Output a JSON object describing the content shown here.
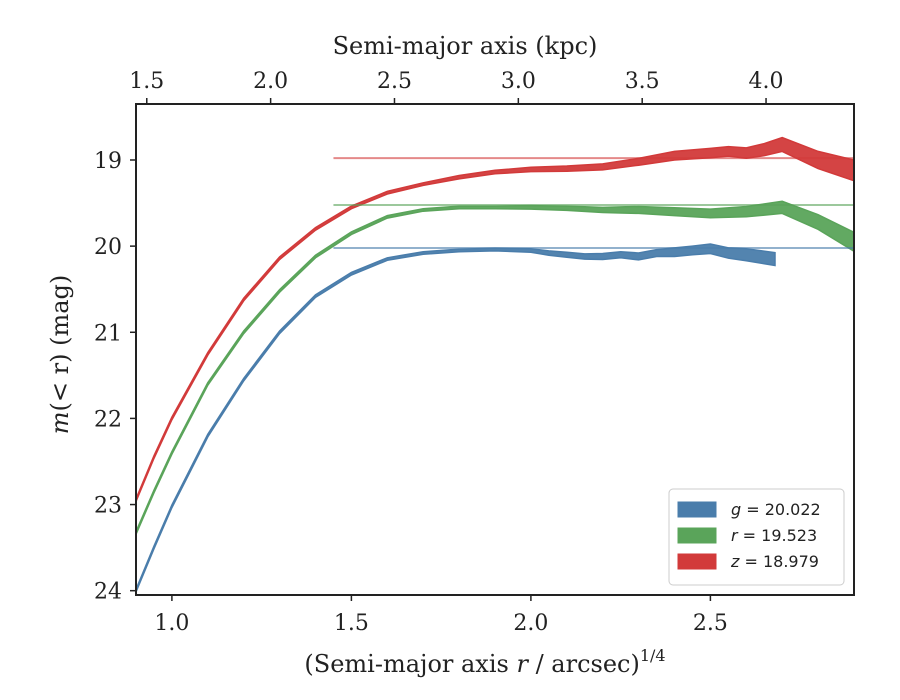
{
  "chart_data": {
    "type": "area",
    "xlabel": "(Semi-major axis r / arcsec)^(1/4)",
    "xlabel_parts": {
      "prefix": "(Semi-major axis ",
      "var": "r",
      "suffix": " / arcsec)",
      "sup": "1/4"
    },
    "ylabel": "m(< r) (mag)",
    "ylabel_parts": {
      "var": "m",
      "rest": "(< r) (mag)"
    },
    "top_xlabel": "Semi-major axis (kpc)",
    "xlim": [
      0.9,
      2.9
    ],
    "ylim": [
      24.05,
      18.35
    ],
    "y_inverted": true,
    "x_ticks": [
      1.0,
      1.5,
      2.0,
      2.5
    ],
    "x_tick_labels": [
      "1.0",
      "1.5",
      "2.0",
      "2.5"
    ],
    "y_ticks": [
      19,
      20,
      21,
      22,
      23,
      24
    ],
    "y_tick_labels": [
      "19",
      "20",
      "21",
      "22",
      "23",
      "24"
    ],
    "top_x_ticks": [
      1.5,
      2.0,
      2.5,
      3.0,
      3.5,
      4.0
    ],
    "top_x_tick_labels": [
      "1.5",
      "2.0",
      "2.5",
      "3.0",
      "3.5",
      "4.0"
    ],
    "top_x_tick_positions": [
      0.93,
      1.275,
      1.62,
      1.965,
      2.31,
      2.655
    ],
    "grid": false,
    "legend_position": "bottom-right",
    "series": [
      {
        "name": "g = 20.022",
        "band": "g",
        "value": "20.022",
        "color": "#4a7dab",
        "asymptote": 20.022,
        "x": [
          0.9,
          0.95,
          1.0,
          1.1,
          1.2,
          1.3,
          1.4,
          1.5,
          1.6,
          1.7,
          1.8,
          1.9,
          2.0,
          2.05,
          2.1,
          2.15,
          2.2,
          2.25,
          2.3,
          2.35,
          2.4,
          2.45,
          2.5,
          2.55,
          2.6,
          2.68
        ],
        "y": [
          24.0,
          23.5,
          23.02,
          22.2,
          21.55,
          21.0,
          20.58,
          20.32,
          20.15,
          20.08,
          20.05,
          20.04,
          20.05,
          20.08,
          20.1,
          20.12,
          20.12,
          20.1,
          20.12,
          20.08,
          20.07,
          20.05,
          20.03,
          20.08,
          20.1,
          20.15
        ],
        "width": [
          0.03,
          0.03,
          0.03,
          0.03,
          0.03,
          0.03,
          0.03,
          0.03,
          0.03,
          0.03,
          0.03,
          0.03,
          0.04,
          0.05,
          0.06,
          0.06,
          0.07,
          0.07,
          0.08,
          0.08,
          0.1,
          0.1,
          0.11,
          0.12,
          0.14,
          0.15
        ]
      },
      {
        "name": "r = 19.523",
        "band": "r",
        "value": "19.523",
        "color": "#5aa45a",
        "asymptote": 19.523,
        "x": [
          0.9,
          0.95,
          1.0,
          1.1,
          1.2,
          1.3,
          1.4,
          1.5,
          1.6,
          1.7,
          1.8,
          1.9,
          2.0,
          2.1,
          2.2,
          2.25,
          2.3,
          2.4,
          2.5,
          2.6,
          2.7,
          2.8,
          2.9
        ],
        "y": [
          23.33,
          22.85,
          22.4,
          21.6,
          21.0,
          20.52,
          20.12,
          19.85,
          19.66,
          19.58,
          19.55,
          19.55,
          19.55,
          19.56,
          19.58,
          19.58,
          19.58,
          19.6,
          19.62,
          19.6,
          19.55,
          19.72,
          19.95
        ],
        "width": [
          0.03,
          0.03,
          0.03,
          0.03,
          0.03,
          0.03,
          0.03,
          0.03,
          0.03,
          0.03,
          0.03,
          0.03,
          0.04,
          0.05,
          0.06,
          0.07,
          0.08,
          0.09,
          0.1,
          0.12,
          0.14,
          0.17,
          0.22
        ]
      },
      {
        "name": "z = 18.979",
        "band": "z",
        "value": "18.979",
        "color": "#d23a3a",
        "asymptote": 18.979,
        "x": [
          0.9,
          0.95,
          1.0,
          1.1,
          1.2,
          1.3,
          1.4,
          1.5,
          1.6,
          1.7,
          1.8,
          1.9,
          2.0,
          2.1,
          2.2,
          2.3,
          2.4,
          2.5,
          2.55,
          2.6,
          2.65,
          2.7,
          2.8,
          2.9
        ],
        "y": [
          22.95,
          22.45,
          22.0,
          21.25,
          20.62,
          20.14,
          19.8,
          19.55,
          19.38,
          19.28,
          19.2,
          19.14,
          19.11,
          19.1,
          19.08,
          19.02,
          18.95,
          18.92,
          18.9,
          18.92,
          18.88,
          18.82,
          19.0,
          19.12
        ],
        "width": [
          0.03,
          0.03,
          0.03,
          0.03,
          0.03,
          0.03,
          0.03,
          0.03,
          0.03,
          0.03,
          0.04,
          0.04,
          0.05,
          0.06,
          0.07,
          0.08,
          0.1,
          0.11,
          0.11,
          0.12,
          0.14,
          0.16,
          0.2,
          0.24
        ]
      }
    ]
  }
}
